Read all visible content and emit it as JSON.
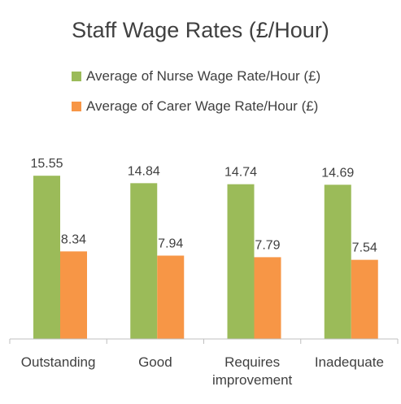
{
  "chart_data": {
    "type": "bar",
    "title": "Staff Wage Rates (£/Hour)",
    "categories": [
      "Outstanding",
      "Good",
      "Requires improvement",
      "Inadequate"
    ],
    "category_lines": [
      [
        "Outstanding"
      ],
      [
        "Good"
      ],
      [
        "Requires",
        "improvement"
      ],
      [
        "Inadequate"
      ]
    ],
    "series": [
      {
        "name": "Average of Nurse Wage Rate/Hour (£)",
        "values": [
          15.55,
          14.84,
          14.74,
          14.69
        ],
        "color": "#9BBB59"
      },
      {
        "name": "Average of Carer Wage Rate/Hour (£)",
        "values": [
          8.34,
          7.94,
          7.79,
          7.54
        ],
        "color": "#F79646"
      }
    ],
    "value_labels": [
      [
        "15.55",
        "14.84",
        "14.74",
        "14.69"
      ],
      [
        "8.34",
        "7.94",
        "7.79",
        "7.54"
      ]
    ],
    "ylim": [
      0,
      19.9
    ],
    "grid": false,
    "legend_position": "top",
    "data_labels": true
  }
}
